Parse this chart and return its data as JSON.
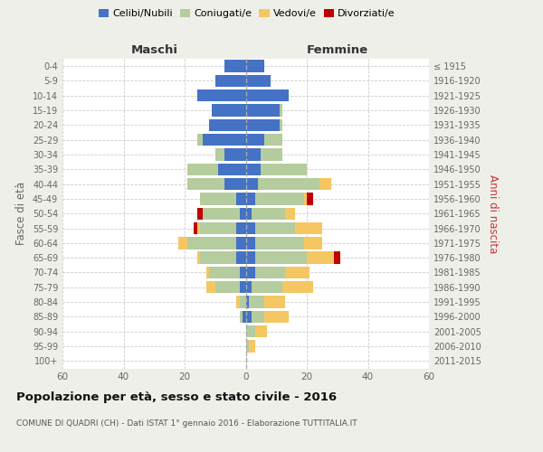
{
  "age_groups": [
    "0-4",
    "5-9",
    "10-14",
    "15-19",
    "20-24",
    "25-29",
    "30-34",
    "35-39",
    "40-44",
    "45-49",
    "50-54",
    "55-59",
    "60-64",
    "65-69",
    "70-74",
    "75-79",
    "80-84",
    "85-89",
    "90-94",
    "95-99",
    "100+"
  ],
  "birth_years": [
    "2011-2015",
    "2006-2010",
    "2001-2005",
    "1996-2000",
    "1991-1995",
    "1986-1990",
    "1981-1985",
    "1976-1980",
    "1971-1975",
    "1966-1970",
    "1961-1965",
    "1956-1960",
    "1951-1955",
    "1946-1950",
    "1941-1945",
    "1936-1940",
    "1931-1935",
    "1926-1930",
    "1921-1925",
    "1916-1920",
    "≤ 1915"
  ],
  "colors": {
    "celibi": "#4472C4",
    "coniugati": "#b5cc9e",
    "vedovi": "#f5c762",
    "divorziati": "#C00000"
  },
  "males": {
    "celibi": [
      7,
      10,
      16,
      11,
      12,
      14,
      7,
      9,
      7,
      3,
      2,
      3,
      3,
      3,
      2,
      2,
      0,
      1,
      0,
      0,
      0
    ],
    "coniugati": [
      0,
      0,
      0,
      0,
      0,
      2,
      3,
      10,
      12,
      12,
      12,
      12,
      16,
      12,
      10,
      8,
      2,
      1,
      0,
      0,
      0
    ],
    "vedovi": [
      0,
      0,
      0,
      0,
      0,
      0,
      0,
      0,
      0,
      0,
      0,
      1,
      3,
      1,
      1,
      3,
      1,
      0,
      0,
      0,
      0
    ],
    "divorziati": [
      0,
      0,
      0,
      0,
      0,
      0,
      0,
      0,
      0,
      0,
      2,
      1,
      0,
      0,
      0,
      0,
      0,
      0,
      0,
      0,
      0
    ]
  },
  "females": {
    "nubili": [
      6,
      8,
      14,
      11,
      11,
      6,
      5,
      5,
      4,
      3,
      2,
      3,
      3,
      3,
      3,
      2,
      1,
      2,
      0,
      0,
      0
    ],
    "coniugate": [
      0,
      0,
      0,
      1,
      1,
      6,
      7,
      15,
      20,
      16,
      11,
      13,
      16,
      17,
      10,
      10,
      5,
      4,
      3,
      1,
      0
    ],
    "vedove": [
      0,
      0,
      0,
      0,
      0,
      0,
      0,
      0,
      4,
      1,
      3,
      9,
      6,
      9,
      8,
      10,
      7,
      8,
      4,
      2,
      0
    ],
    "divorziate": [
      0,
      0,
      0,
      0,
      0,
      0,
      0,
      0,
      0,
      2,
      0,
      0,
      0,
      2,
      0,
      0,
      0,
      0,
      0,
      0,
      0
    ]
  },
  "xlim": 60,
  "title": "Popolazione per età, sesso e stato civile - 2016",
  "subtitle": "COMUNE DI QUADRI (CH) - Dati ISTAT 1° gennaio 2016 - Elaborazione TUTTITALIA.IT",
  "ylabel_left": "Fasce di età",
  "ylabel_right": "Anni di nascita",
  "xlabel_left": "Maschi",
  "xlabel_right": "Femmine",
  "bg_color": "#efefea",
  "plot_bg": "#ffffff"
}
